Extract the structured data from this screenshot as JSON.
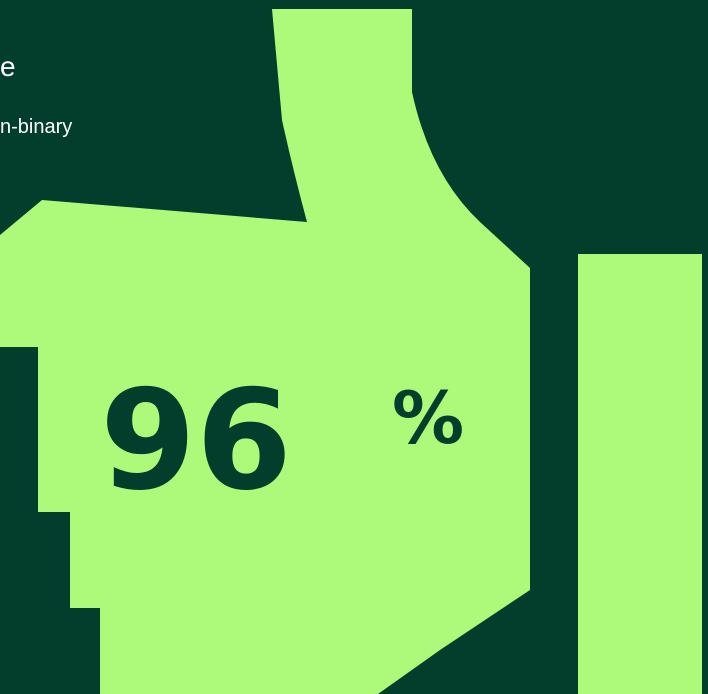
{
  "text": {
    "line1": "e",
    "line2": "n-binary"
  },
  "stat": {
    "value": "96",
    "unit": "%"
  },
  "colors": {
    "background": "#033e2d",
    "accent": "#adfa7b",
    "text": "#ffffff",
    "stat_text": "#033e2d"
  },
  "icons": {
    "graphic": "thumbs-up-icon"
  }
}
